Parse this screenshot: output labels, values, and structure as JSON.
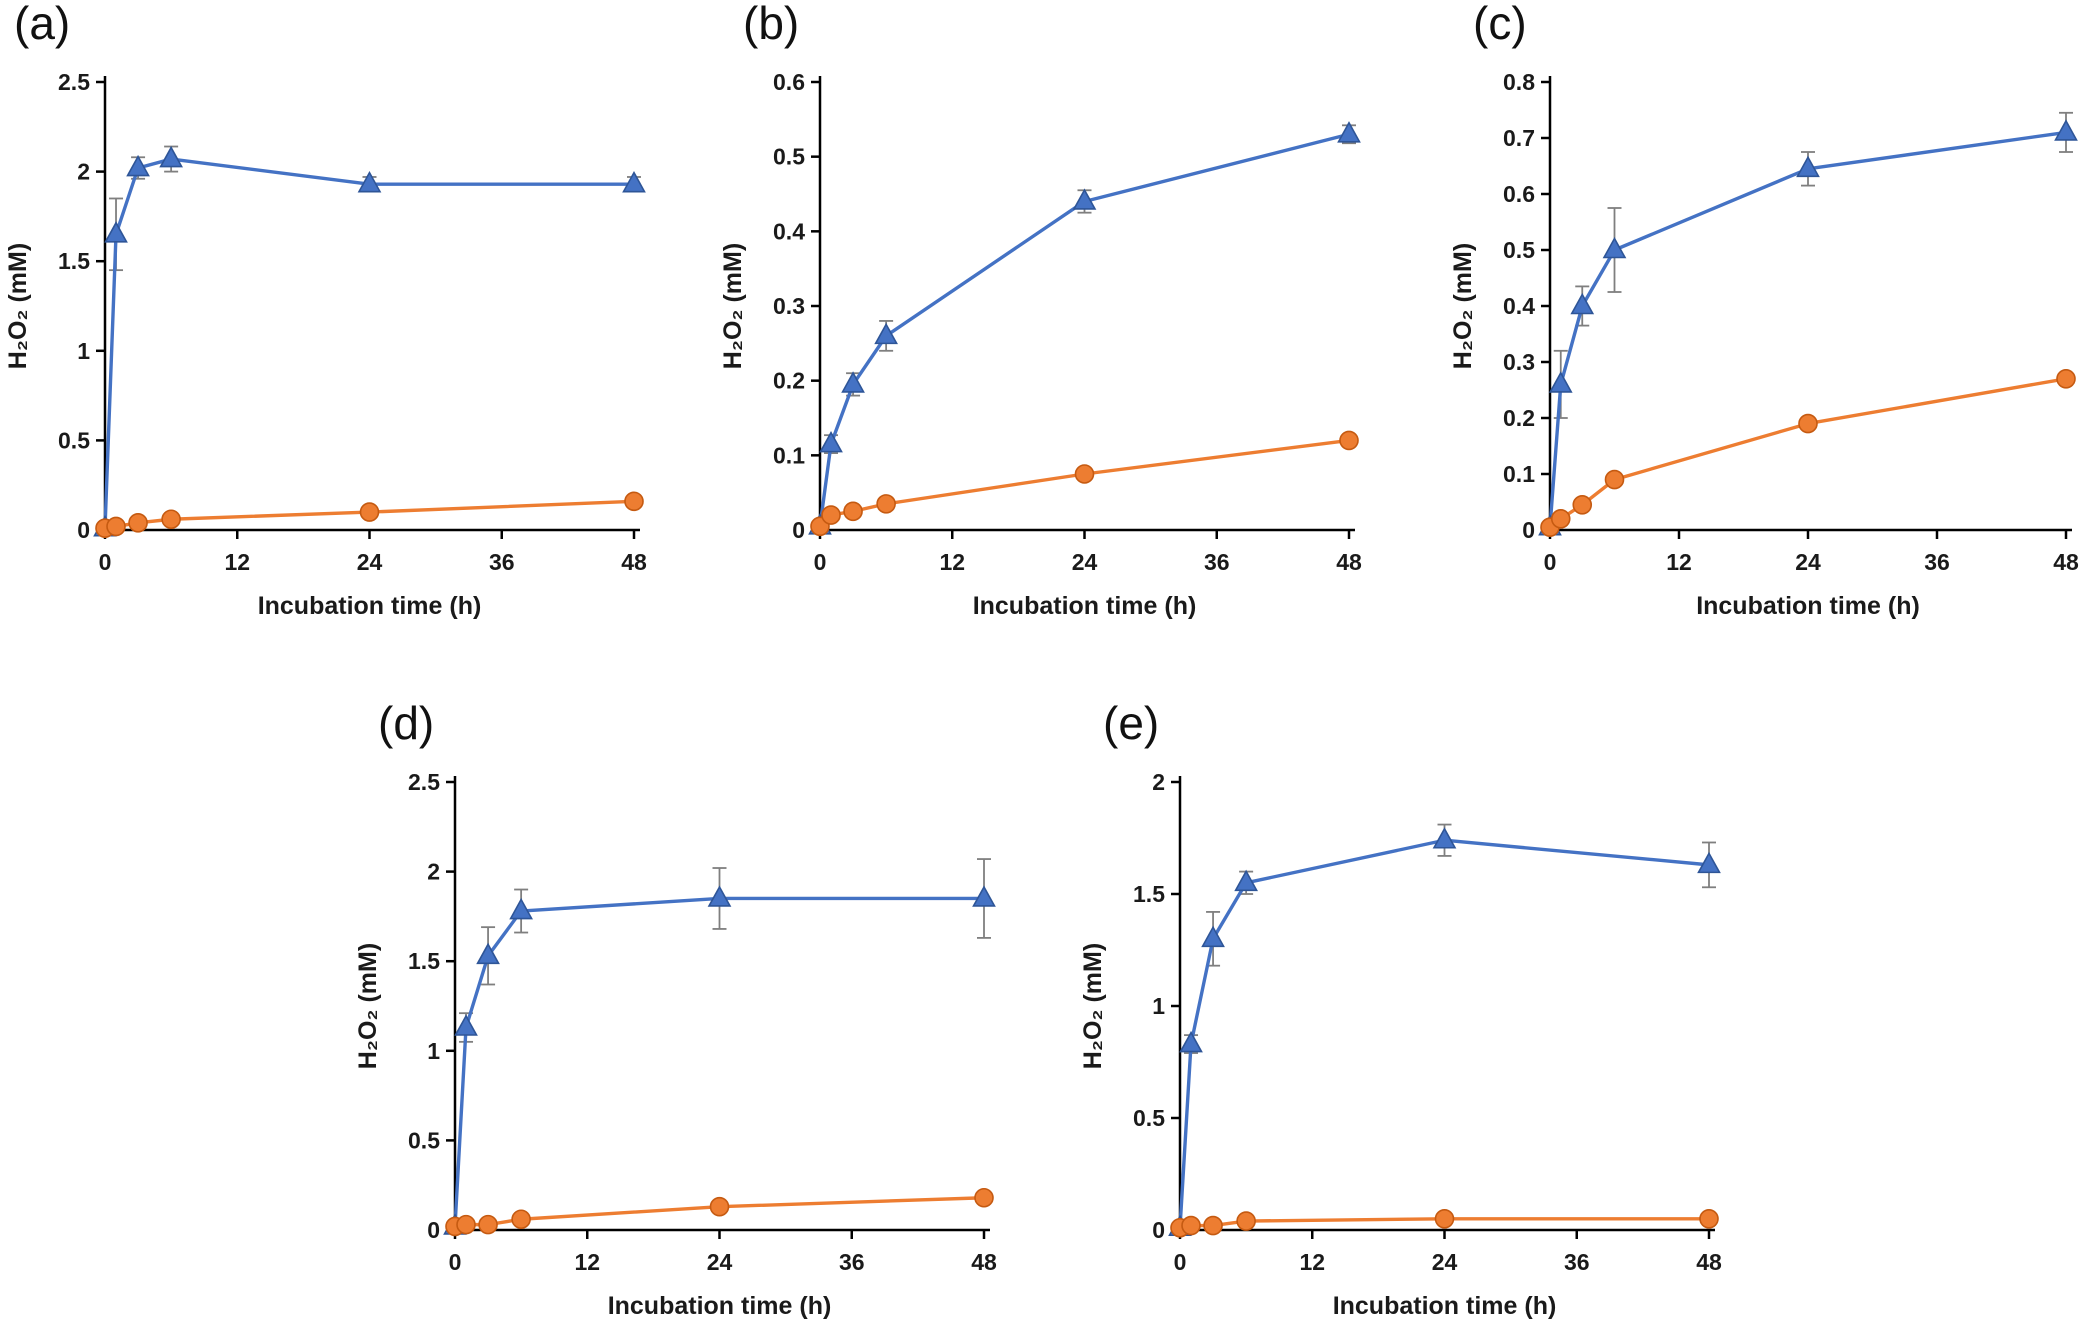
{
  "figure": {
    "background": "#ffffff"
  },
  "colors": {
    "series1": "#4472C4",
    "series1_edge": "#2E5597",
    "series2": "#ED7D31",
    "series2_edge": "#C55A11",
    "error_bar": "#7F7F7F",
    "axis": "#000000",
    "text": "#1a1a1a"
  },
  "chart_data": [
    {
      "panel_label": "(a)",
      "type": "line",
      "xlabel": "Incubation time (h)",
      "ylabel": "H₂O₂ (mM)",
      "xlim": [
        0,
        48
      ],
      "ylim": [
        0,
        2.5
      ],
      "xticks": [
        0,
        12,
        24,
        36,
        48
      ],
      "yticks": [
        0,
        0.5,
        1,
        1.5,
        2,
        2.5
      ],
      "series": [
        {
          "name": "triangle-series",
          "marker": "triangle",
          "x": [
            0,
            1,
            3,
            6,
            24,
            48
          ],
          "y": [
            0.01,
            1.65,
            2.02,
            2.07,
            1.93,
            1.93
          ],
          "yerr": [
            0,
            0.2,
            0.06,
            0.07,
            0.04,
            0.04
          ]
        },
        {
          "name": "circle-series",
          "marker": "circle",
          "x": [
            0,
            1,
            3,
            6,
            24,
            48
          ],
          "y": [
            0.01,
            0.02,
            0.04,
            0.06,
            0.1,
            0.16
          ],
          "yerr": [
            0,
            0,
            0,
            0,
            0.01,
            0.01
          ]
        }
      ]
    },
    {
      "panel_label": "(b)",
      "type": "line",
      "xlabel": "Incubation time (h)",
      "ylabel": "H₂O₂ (mM)",
      "xlim": [
        0,
        48
      ],
      "ylim": [
        0,
        0.6
      ],
      "xticks": [
        0,
        12,
        24,
        36,
        48
      ],
      "yticks": [
        0,
        0.1,
        0.2,
        0.3,
        0.4,
        0.5,
        0.6
      ],
      "series": [
        {
          "name": "triangle-series",
          "marker": "triangle",
          "x": [
            0,
            1,
            3,
            6,
            24,
            48
          ],
          "y": [
            0.005,
            0.115,
            0.195,
            0.26,
            0.44,
            0.53
          ],
          "yerr": [
            0,
            0.012,
            0.015,
            0.02,
            0.015,
            0.012
          ]
        },
        {
          "name": "circle-series",
          "marker": "circle",
          "x": [
            0,
            1,
            3,
            6,
            24,
            48
          ],
          "y": [
            0.005,
            0.02,
            0.025,
            0.035,
            0.075,
            0.12
          ],
          "yerr": [
            0,
            0.005,
            0.005,
            0.005,
            0.005,
            0.005
          ]
        }
      ]
    },
    {
      "panel_label": "(c)",
      "type": "line",
      "xlabel": "Incubation time (h)",
      "ylabel": "H₂O₂ (mM)",
      "xlim": [
        0,
        48
      ],
      "ylim": [
        0,
        0.8
      ],
      "xticks": [
        0,
        12,
        24,
        36,
        48
      ],
      "yticks": [
        0,
        0.1,
        0.2,
        0.3,
        0.4,
        0.5,
        0.6,
        0.7,
        0.8
      ],
      "series": [
        {
          "name": "triangle-series",
          "marker": "triangle",
          "x": [
            0,
            1,
            3,
            6,
            24,
            48
          ],
          "y": [
            0.005,
            0.26,
            0.4,
            0.5,
            0.645,
            0.71
          ],
          "yerr": [
            0,
            0.06,
            0.035,
            0.075,
            0.03,
            0.035
          ]
        },
        {
          "name": "circle-series",
          "marker": "circle",
          "x": [
            0,
            1,
            3,
            6,
            24,
            48
          ],
          "y": [
            0.005,
            0.02,
            0.045,
            0.09,
            0.19,
            0.27
          ],
          "yerr": [
            0,
            0.005,
            0.005,
            0.01,
            0.01,
            0.01
          ]
        }
      ]
    },
    {
      "panel_label": "(d)",
      "type": "line",
      "xlabel": "Incubation time (h)",
      "ylabel": "H₂O₂ (mM)",
      "xlim": [
        0,
        48
      ],
      "ylim": [
        0,
        2.5
      ],
      "xticks": [
        0,
        12,
        24,
        36,
        48
      ],
      "yticks": [
        0,
        0.5,
        1,
        1.5,
        2,
        2.5
      ],
      "series": [
        {
          "name": "triangle-series",
          "marker": "triangle",
          "x": [
            0,
            1,
            3,
            6,
            24,
            48
          ],
          "y": [
            0.02,
            1.13,
            1.53,
            1.78,
            1.85,
            1.85
          ],
          "yerr": [
            0,
            0.08,
            0.16,
            0.12,
            0.17,
            0.22
          ]
        },
        {
          "name": "circle-series",
          "marker": "circle",
          "x": [
            0,
            1,
            3,
            6,
            24,
            48
          ],
          "y": [
            0.02,
            0.03,
            0.03,
            0.06,
            0.13,
            0.18
          ],
          "yerr": [
            0,
            0,
            0,
            0,
            0.02,
            0.02
          ]
        }
      ]
    },
    {
      "panel_label": "(e)",
      "type": "line",
      "xlabel": "Incubation time (h)",
      "ylabel": "H₂O₂ (mM)",
      "xlim": [
        0,
        48
      ],
      "ylim": [
        0,
        2
      ],
      "xticks": [
        0,
        12,
        24,
        36,
        48
      ],
      "yticks": [
        0,
        0.5,
        1,
        1.5,
        2
      ],
      "series": [
        {
          "name": "triangle-series",
          "marker": "triangle",
          "x": [
            0,
            1,
            3,
            6,
            24,
            48
          ],
          "y": [
            0.01,
            0.83,
            1.3,
            1.55,
            1.74,
            1.63
          ],
          "yerr": [
            0,
            0.04,
            0.12,
            0.05,
            0.07,
            0.1
          ]
        },
        {
          "name": "circle-series",
          "marker": "circle",
          "x": [
            0,
            1,
            3,
            6,
            24,
            48
          ],
          "y": [
            0.01,
            0.02,
            0.02,
            0.04,
            0.05,
            0.05
          ],
          "yerr": [
            0,
            0,
            0,
            0,
            0.005,
            0.005
          ]
        }
      ]
    }
  ]
}
